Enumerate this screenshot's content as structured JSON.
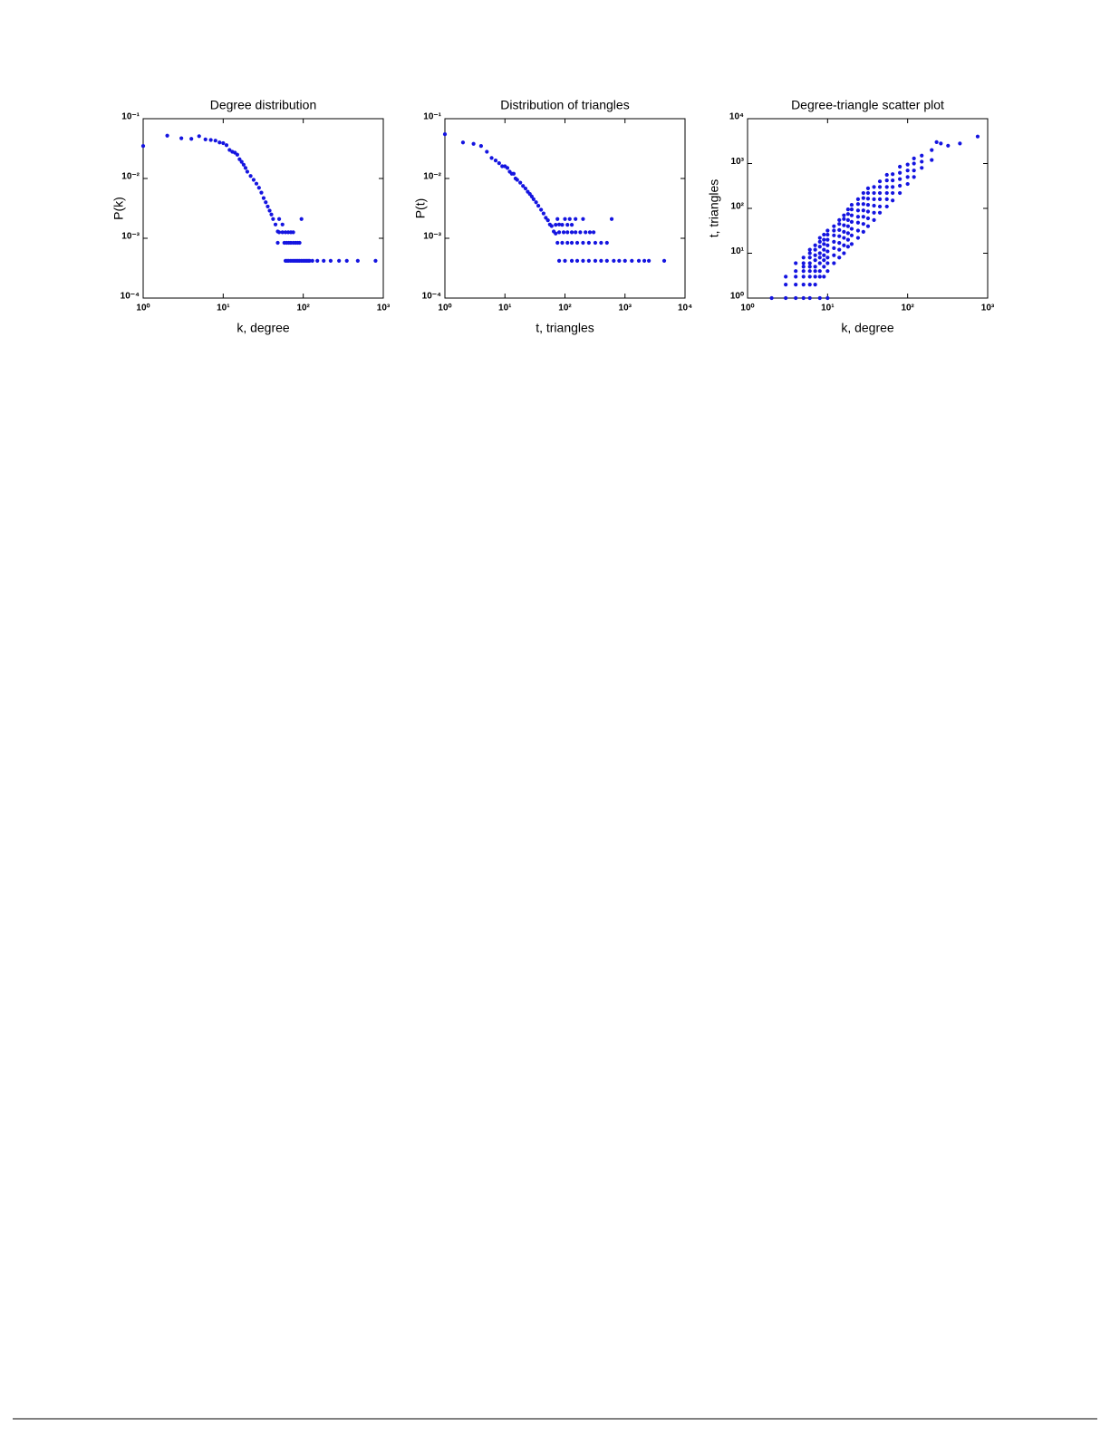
{
  "chart_data": [
    {
      "type": "scatter",
      "title": "Degree distribution",
      "xlabel": "k, degree",
      "ylabel": "P(k)",
      "xscale": "log",
      "yscale": "log",
      "color": "#1414e0",
      "xlim": [
        1,
        1000
      ],
      "ylim": [
        0.0001,
        0.1
      ],
      "xticks": [
        {
          "value": 1,
          "label": "10⁰"
        },
        {
          "value": 10,
          "label": "10¹"
        },
        {
          "value": 100,
          "label": "10²"
        },
        {
          "value": 1000,
          "label": "10³"
        }
      ],
      "yticks": [
        {
          "value": 0.0001,
          "label": "10⁻⁴"
        },
        {
          "value": 0.001,
          "label": "10⁻³"
        },
        {
          "value": 0.01,
          "label": "10⁻²"
        },
        {
          "value": 0.1,
          "label": "10⁻¹"
        }
      ],
      "x": [
        1,
        2,
        3,
        4,
        5,
        6,
        7,
        8,
        9,
        10,
        11,
        12,
        13,
        14,
        15,
        16,
        17,
        18,
        19,
        20,
        22,
        24,
        26,
        28,
        30,
        32,
        34,
        36,
        38,
        40,
        42,
        45,
        48,
        50,
        55,
        95,
        50,
        55,
        60,
        65,
        70,
        75,
        48,
        58,
        62,
        66,
        70,
        75,
        80,
        85,
        90,
        60,
        63,
        66,
        70,
        74,
        78,
        82,
        86,
        90,
        95,
        100,
        105,
        110,
        115,
        120,
        130,
        150,
        180,
        220,
        280,
        350,
        480,
        800
      ],
      "values": [
        0.035,
        0.052,
        0.047,
        0.046,
        0.051,
        0.045,
        0.044,
        0.043,
        0.04,
        0.039,
        0.036,
        0.03,
        0.028,
        0.027,
        0.025,
        0.021,
        0.019,
        0.017,
        0.015,
        0.013,
        0.011,
        0.0095,
        0.0082,
        0.007,
        0.0058,
        0.0047,
        0.004,
        0.0034,
        0.0029,
        0.0025,
        0.0021,
        0.0017,
        0.0013,
        0.0021,
        0.0017,
        0.0021,
        0.00126,
        0.00126,
        0.00126,
        0.00126,
        0.00126,
        0.00126,
        0.00084,
        0.00084,
        0.00084,
        0.00084,
        0.00084,
        0.00084,
        0.00084,
        0.00084,
        0.00084,
        0.00042,
        0.00042,
        0.00042,
        0.00042,
        0.00042,
        0.00042,
        0.00042,
        0.00042,
        0.00042,
        0.00042,
        0.00042,
        0.00042,
        0.00042,
        0.00042,
        0.00042,
        0.00042,
        0.00042,
        0.00042,
        0.00042,
        0.00042,
        0.00042,
        0.00042,
        0.00042
      ]
    },
    {
      "type": "scatter",
      "title": "Distribution of triangles",
      "xlabel": "t, triangles",
      "ylabel": "P(t)",
      "xscale": "log",
      "yscale": "log",
      "color": "#1414e0",
      "xlim": [
        1,
        10000
      ],
      "ylim": [
        0.0001,
        0.1
      ],
      "xticks": [
        {
          "value": 1,
          "label": "10⁰"
        },
        {
          "value": 10,
          "label": "10¹"
        },
        {
          "value": 100,
          "label": "10²"
        },
        {
          "value": 1000,
          "label": "10³"
        },
        {
          "value": 10000,
          "label": "10⁴"
        }
      ],
      "yticks": [
        {
          "value": 0.0001,
          "label": "10⁻⁴"
        },
        {
          "value": 0.001,
          "label": "10⁻³"
        },
        {
          "value": 0.01,
          "label": "10⁻²"
        },
        {
          "value": 0.1,
          "label": "10⁻¹"
        }
      ],
      "x": [
        1,
        2,
        3,
        4,
        5,
        6,
        7,
        8,
        9,
        10,
        11,
        12,
        13,
        14,
        15,
        16,
        18,
        20,
        22,
        24,
        26,
        28,
        30,
        33,
        36,
        40,
        44,
        48,
        52,
        56,
        60,
        65,
        70,
        75,
        80,
        100,
        120,
        150,
        200,
        600,
        70,
        90,
        110,
        130,
        80,
        95,
        110,
        130,
        150,
        180,
        220,
        260,
        300,
        75,
        90,
        110,
        130,
        160,
        200,
        250,
        320,
        400,
        500,
        80,
        100,
        130,
        160,
        200,
        250,
        320,
        400,
        500,
        650,
        800,
        1000,
        1300,
        1700,
        2100,
        2500,
        4500
      ],
      "values": [
        0.055,
        0.04,
        0.038,
        0.035,
        0.028,
        0.022,
        0.02,
        0.018,
        0.016,
        0.016,
        0.015,
        0.013,
        0.012,
        0.012,
        0.01,
        0.0095,
        0.0085,
        0.0075,
        0.0068,
        0.006,
        0.0055,
        0.005,
        0.0045,
        0.004,
        0.0035,
        0.003,
        0.0026,
        0.0022,
        0.002,
        0.0017,
        0.0016,
        0.0013,
        0.0012,
        0.0021,
        0.0017,
        0.0021,
        0.0021,
        0.0021,
        0.0021,
        0.0021,
        0.00168,
        0.00168,
        0.00168,
        0.00168,
        0.00126,
        0.00126,
        0.00126,
        0.00126,
        0.00126,
        0.00126,
        0.00126,
        0.00126,
        0.00126,
        0.00084,
        0.00084,
        0.00084,
        0.00084,
        0.00084,
        0.00084,
        0.00084,
        0.00084,
        0.00084,
        0.00084,
        0.00042,
        0.00042,
        0.00042,
        0.00042,
        0.00042,
        0.00042,
        0.00042,
        0.00042,
        0.00042,
        0.00042,
        0.00042,
        0.00042,
        0.00042,
        0.00042,
        0.00042,
        0.00042,
        0.00042
      ]
    },
    {
      "type": "scatter",
      "title": "Degree-triangle scatter plot",
      "xlabel": "k, degree",
      "ylabel": "t, triangles",
      "xscale": "log",
      "yscale": "log",
      "color": "#1414e0",
      "xlim": [
        1,
        1000
      ],
      "ylim": [
        1,
        10000
      ],
      "xticks": [
        {
          "value": 1,
          "label": "10⁰"
        },
        {
          "value": 10,
          "label": "10¹"
        },
        {
          "value": 100,
          "label": "10²"
        },
        {
          "value": 1000,
          "label": "10³"
        }
      ],
      "yticks": [
        {
          "value": 1,
          "label": "10⁰"
        },
        {
          "value": 10,
          "label": "10¹"
        },
        {
          "value": 100,
          "label": "10²"
        },
        {
          "value": 1000,
          "label": "10³"
        },
        {
          "value": 10000,
          "label": "10⁴"
        }
      ],
      "x": [
        2,
        3,
        3,
        3,
        4,
        4,
        4,
        4,
        4,
        5,
        5,
        5,
        5,
        5,
        5,
        5,
        6,
        6,
        6,
        6,
        6,
        6,
        6,
        6,
        6,
        7,
        7,
        7,
        7,
        7,
        7,
        7,
        7,
        8,
        8,
        8,
        8,
        8,
        8,
        8,
        8,
        8,
        9,
        9,
        9,
        9,
        9,
        9,
        9,
        9,
        10,
        10,
        10,
        10,
        10,
        10,
        10,
        10,
        10,
        12,
        12,
        12,
        12,
        12,
        12,
        12,
        14,
        14,
        14,
        14,
        14,
        14,
        14,
        16,
        16,
        16,
        16,
        16,
        16,
        16,
        18,
        18,
        18,
        18,
        18,
        18,
        18,
        20,
        20,
        20,
        20,
        20,
        20,
        20,
        24,
        24,
        24,
        24,
        24,
        24,
        24,
        28,
        28,
        28,
        28,
        28,
        28,
        28,
        32,
        32,
        32,
        32,
        32,
        32,
        32,
        38,
        38,
        38,
        38,
        38,
        38,
        45,
        45,
        45,
        45,
        45,
        45,
        55,
        55,
        55,
        55,
        55,
        55,
        65,
        65,
        65,
        65,
        65,
        80,
        80,
        80,
        80,
        80,
        100,
        100,
        100,
        100,
        120,
        120,
        120,
        120,
        150,
        150,
        150,
        200,
        200,
        230,
        260,
        320,
        450,
        750
      ],
      "values": [
        1,
        1,
        2,
        3,
        1,
        2,
        3,
        4,
        6,
        1,
        2,
        3,
        4,
        5,
        6,
        8,
        1,
        2,
        3,
        4,
        5,
        6,
        8,
        10,
        12,
        2,
        3,
        4,
        5,
        7,
        9,
        12,
        15,
        1,
        3,
        4,
        6,
        8,
        10,
        14,
        18,
        22,
        3,
        5,
        7,
        9,
        12,
        16,
        20,
        26,
        1,
        4,
        6,
        8,
        11,
        15,
        20,
        26,
        32,
        6,
        9,
        13,
        18,
        25,
        32,
        40,
        8,
        12,
        17,
        24,
        33,
        45,
        55,
        10,
        15,
        22,
        30,
        42,
        58,
        70,
        14,
        20,
        28,
        40,
        55,
        75,
        95,
        16,
        25,
        35,
        50,
        70,
        95,
        120,
        22,
        32,
        48,
        65,
        90,
        125,
        160,
        30,
        45,
        65,
        90,
        125,
        170,
        220,
        40,
        60,
        85,
        120,
        165,
        220,
        280,
        55,
        80,
        115,
        160,
        220,
        300,
        80,
        110,
        160,
        220,
        300,
        400,
        110,
        160,
        220,
        300,
        420,
        560,
        150,
        220,
        300,
        420,
        580,
        220,
        320,
        450,
        620,
        850,
        350,
        500,
        700,
        950,
        500,
        700,
        1000,
        1300,
        800,
        1100,
        1500,
        1200,
        2000,
        3000,
        2800,
        2500,
        2800,
        4000
      ]
    }
  ]
}
